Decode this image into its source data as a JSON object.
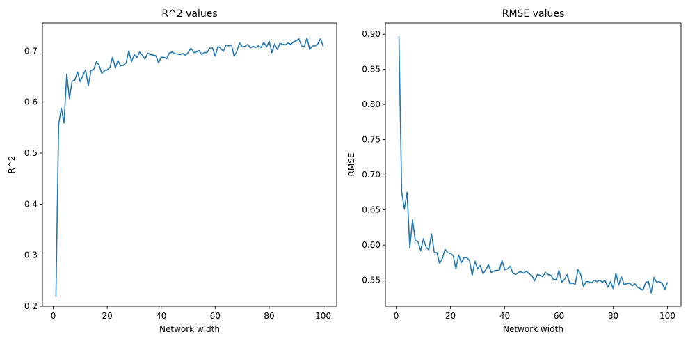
{
  "chart_data": [
    {
      "type": "line",
      "title": "R^2 values",
      "xlabel": "Network width",
      "ylabel": "R^2",
      "xlim": [
        -4,
        105
      ],
      "ylim": [
        0.2,
        0.755
      ],
      "xticks": [
        0,
        20,
        40,
        60,
        80,
        100
      ],
      "yticks": [
        0.2,
        0.3,
        0.4,
        0.5,
        0.6,
        0.7
      ],
      "ytick_labels": [
        "0.2",
        "0.3",
        "0.4",
        "0.5",
        "0.6",
        "0.7"
      ],
      "grid": false,
      "color": "#1f77b4",
      "x": [
        1,
        2,
        3,
        4,
        5,
        6,
        7,
        8,
        9,
        10,
        11,
        12,
        13,
        14,
        15,
        16,
        17,
        18,
        19,
        20,
        21,
        22,
        23,
        24,
        25,
        26,
        27,
        28,
        29,
        30,
        31,
        32,
        33,
        34,
        35,
        36,
        37,
        38,
        39,
        40,
        41,
        42,
        43,
        44,
        45,
        46,
        47,
        48,
        49,
        50,
        51,
        52,
        53,
        54,
        55,
        56,
        57,
        58,
        59,
        60,
        61,
        62,
        63,
        64,
        65,
        66,
        67,
        68,
        69,
        70,
        71,
        72,
        73,
        74,
        75,
        76,
        77,
        78,
        79,
        80,
        81,
        82,
        83,
        84,
        85,
        86,
        87,
        88,
        89,
        90,
        91,
        92,
        93,
        94,
        95,
        96,
        97,
        98,
        99,
        100
      ],
      "y": [
        0.218,
        0.556,
        0.588,
        0.559,
        0.655,
        0.607,
        0.641,
        0.643,
        0.659,
        0.64,
        0.652,
        0.663,
        0.632,
        0.662,
        0.664,
        0.679,
        0.672,
        0.656,
        0.662,
        0.663,
        0.668,
        0.688,
        0.667,
        0.681,
        0.671,
        0.672,
        0.677,
        0.7,
        0.679,
        0.693,
        0.687,
        0.698,
        0.692,
        0.684,
        0.696,
        0.693,
        0.692,
        0.691,
        0.677,
        0.688,
        0.688,
        0.685,
        0.696,
        0.698,
        0.695,
        0.694,
        0.693,
        0.695,
        0.692,
        0.697,
        0.706,
        0.697,
        0.698,
        0.701,
        0.693,
        0.697,
        0.697,
        0.706,
        0.706,
        0.69,
        0.709,
        0.706,
        0.699,
        0.712,
        0.71,
        0.712,
        0.69,
        0.699,
        0.716,
        0.708,
        0.709,
        0.713,
        0.706,
        0.709,
        0.707,
        0.71,
        0.707,
        0.717,
        0.708,
        0.719,
        0.697,
        0.714,
        0.703,
        0.715,
        0.713,
        0.712,
        0.716,
        0.713,
        0.718,
        0.72,
        0.724,
        0.71,
        0.709,
        0.726,
        0.703,
        0.71,
        0.71,
        0.714,
        0.724,
        0.709
      ]
    },
    {
      "type": "line",
      "title": "RMSE values",
      "xlabel": "Network width",
      "ylabel": "RMSE",
      "xlim": [
        -4,
        105
      ],
      "ylim": [
        0.513,
        0.916
      ],
      "xticks": [
        0,
        20,
        40,
        60,
        80,
        100
      ],
      "yticks": [
        0.55,
        0.6,
        0.65,
        0.7,
        0.75,
        0.8,
        0.85,
        0.9
      ],
      "ytick_labels": [
        "0.55",
        "0.60",
        "0.65",
        "0.70",
        "0.75",
        "0.80",
        "0.85",
        "0.90"
      ],
      "grid": false,
      "color": "#1f77b4",
      "x": [
        1,
        2,
        3,
        4,
        5,
        6,
        7,
        8,
        9,
        10,
        11,
        12,
        13,
        14,
        15,
        16,
        17,
        18,
        19,
        20,
        21,
        22,
        23,
        24,
        25,
        26,
        27,
        28,
        29,
        30,
        31,
        32,
        33,
        34,
        35,
        36,
        37,
        38,
        39,
        40,
        41,
        42,
        43,
        44,
        45,
        46,
        47,
        48,
        49,
        50,
        51,
        52,
        53,
        54,
        55,
        56,
        57,
        58,
        59,
        60,
        61,
        62,
        63,
        64,
        65,
        66,
        67,
        68,
        69,
        70,
        71,
        72,
        73,
        74,
        75,
        76,
        77,
        78,
        79,
        80,
        81,
        82,
        83,
        84,
        85,
        86,
        87,
        88,
        89,
        90,
        91,
        92,
        93,
        94,
        95,
        96,
        97,
        98,
        99,
        100
      ],
      "y": [
        0.897,
        0.676,
        0.651,
        0.675,
        0.596,
        0.636,
        0.607,
        0.605,
        0.592,
        0.609,
        0.597,
        0.593,
        0.616,
        0.59,
        0.589,
        0.574,
        0.581,
        0.594,
        0.589,
        0.588,
        0.585,
        0.566,
        0.586,
        0.575,
        0.582,
        0.582,
        0.578,
        0.557,
        0.577,
        0.566,
        0.571,
        0.559,
        0.565,
        0.572,
        0.561,
        0.563,
        0.564,
        0.564,
        0.578,
        0.565,
        0.566,
        0.57,
        0.56,
        0.558,
        0.561,
        0.562,
        0.56,
        0.563,
        0.559,
        0.557,
        0.549,
        0.558,
        0.557,
        0.555,
        0.561,
        0.558,
        0.557,
        0.551,
        0.551,
        0.564,
        0.547,
        0.551,
        0.558,
        0.545,
        0.546,
        0.544,
        0.565,
        0.558,
        0.541,
        0.548,
        0.548,
        0.546,
        0.55,
        0.548,
        0.55,
        0.547,
        0.55,
        0.54,
        0.548,
        0.538,
        0.56,
        0.543,
        0.555,
        0.544,
        0.545,
        0.546,
        0.542,
        0.545,
        0.54,
        0.538,
        0.536,
        0.547,
        0.548,
        0.532,
        0.554,
        0.547,
        0.548,
        0.546,
        0.537,
        0.547
      ]
    }
  ]
}
